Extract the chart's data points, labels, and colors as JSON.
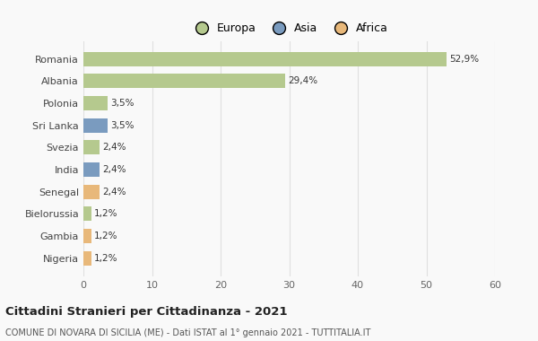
{
  "countries": [
    "Romania",
    "Albania",
    "Polonia",
    "Sri Lanka",
    "Svezia",
    "India",
    "Senegal",
    "Bielorussia",
    "Gambia",
    "Nigeria"
  ],
  "values": [
    52.9,
    29.4,
    3.5,
    3.5,
    2.4,
    2.4,
    2.4,
    1.2,
    1.2,
    1.2
  ],
  "labels": [
    "52,9%",
    "29,4%",
    "3,5%",
    "3,5%",
    "2,4%",
    "2,4%",
    "2,4%",
    "1,2%",
    "1,2%",
    "1,2%"
  ],
  "colors": [
    "#b5c98e",
    "#b5c98e",
    "#b5c98e",
    "#7a9bbf",
    "#b5c98e",
    "#7a9bbf",
    "#e8b87a",
    "#b5c98e",
    "#e8b87a",
    "#e8b87a"
  ],
  "legend_labels": [
    "Europa",
    "Asia",
    "Africa"
  ],
  "legend_colors": [
    "#b5c98e",
    "#7a9bbf",
    "#e8b87a"
  ],
  "title": "Cittadini Stranieri per Cittadinanza - 2021",
  "subtitle": "COMUNE DI NOVARA DI SICILIA (ME) - Dati ISTAT al 1° gennaio 2021 - TUTTITALIA.IT",
  "xlim": [
    0,
    60
  ],
  "xticks": [
    0,
    10,
    20,
    30,
    40,
    50,
    60
  ],
  "background_color": "#f9f9f9",
  "grid_color": "#e0e0e0"
}
